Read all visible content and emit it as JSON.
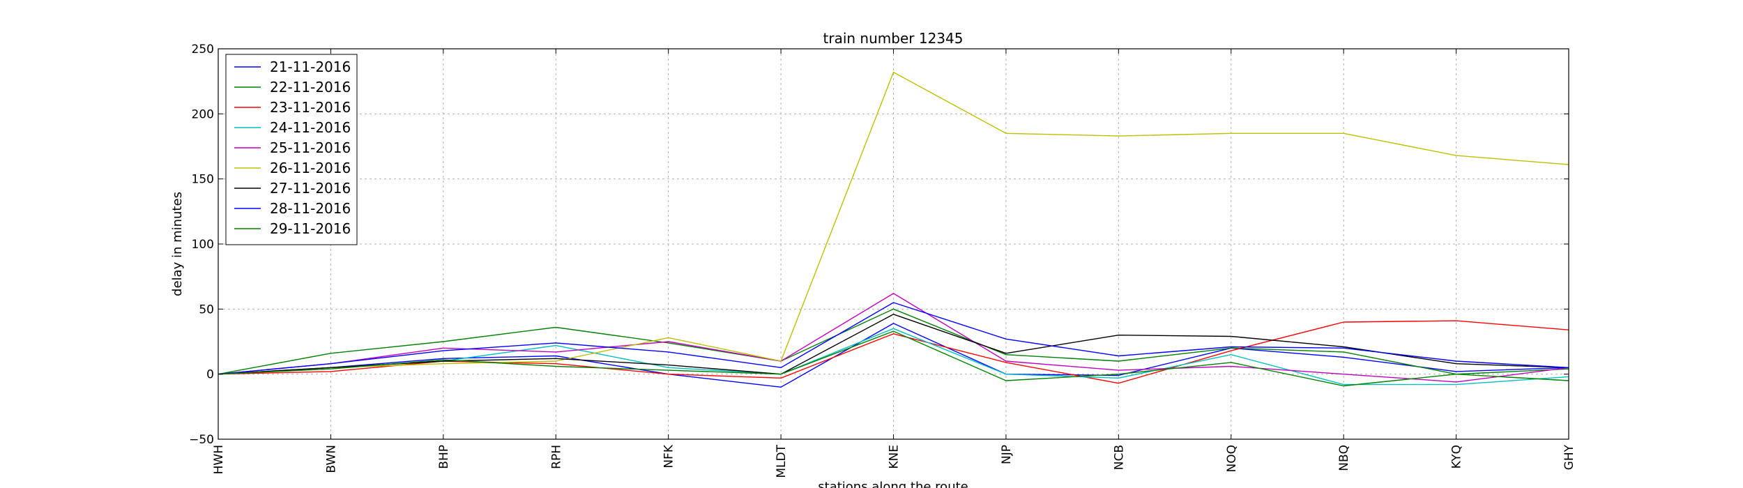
{
  "chart_data": {
    "type": "line",
    "title": "train number 12345",
    "xlabel": "stations along the route",
    "ylabel": "delay in minutes",
    "categories": [
      "HWH",
      "BWN",
      "BHP",
      "RPH",
      "NFK",
      "MLDT",
      "KNE",
      "NJP",
      "NCB",
      "NOQ",
      "NBQ",
      "KYQ",
      "GHY"
    ],
    "ylim": [
      -50,
      250
    ],
    "yticks": [
      -50,
      0,
      50,
      100,
      150,
      200,
      250
    ],
    "grid": true,
    "legend_position": "top-left",
    "series": [
      {
        "name": "21-11-2016",
        "color": "#0000ff",
        "values": [
          0,
          5,
          12,
          14,
          0,
          -10,
          39,
          0,
          -1,
          20,
          13,
          2,
          5
        ]
      },
      {
        "name": "22-11-2016",
        "color": "#008000",
        "values": [
          0,
          16,
          25,
          36,
          24,
          10,
          50,
          15,
          10,
          20,
          17,
          0,
          4
        ]
      },
      {
        "name": "23-11-2016",
        "color": "#ff0000",
        "values": [
          0,
          2,
          10,
          8,
          0,
          -3,
          31,
          9,
          -7,
          18,
          40,
          41,
          34
        ]
      },
      {
        "name": "24-11-2016",
        "color": "#00bfbf",
        "values": [
          0,
          5,
          10,
          22,
          5,
          0,
          35,
          0,
          -3,
          15,
          -8,
          -8,
          -2
        ]
      },
      {
        "name": "25-11-2016",
        "color": "#bf00bf",
        "values": [
          0,
          8,
          20,
          17,
          25,
          10,
          62,
          10,
          3,
          6,
          0,
          -6,
          5
        ]
      },
      {
        "name": "26-11-2016",
        "color": "#bfbf00",
        "values": [
          0,
          5,
          8,
          10,
          28,
          10,
          232,
          185,
          183,
          185,
          185,
          168,
          161
        ]
      },
      {
        "name": "27-11-2016",
        "color": "#000000",
        "values": [
          0,
          5,
          10,
          12,
          7,
          0,
          46,
          16,
          30,
          29,
          21,
          8,
          5
        ]
      },
      {
        "name": "28-11-2016",
        "color": "#0000ff",
        "values": [
          0,
          8,
          18,
          24,
          17,
          5,
          55,
          27,
          14,
          21,
          20,
          10,
          5
        ]
      },
      {
        "name": "29-11-2016",
        "color": "#008000",
        "values": [
          0,
          4,
          11,
          6,
          3,
          0,
          33,
          -5,
          0,
          9,
          -9,
          0,
          -5
        ]
      }
    ]
  }
}
